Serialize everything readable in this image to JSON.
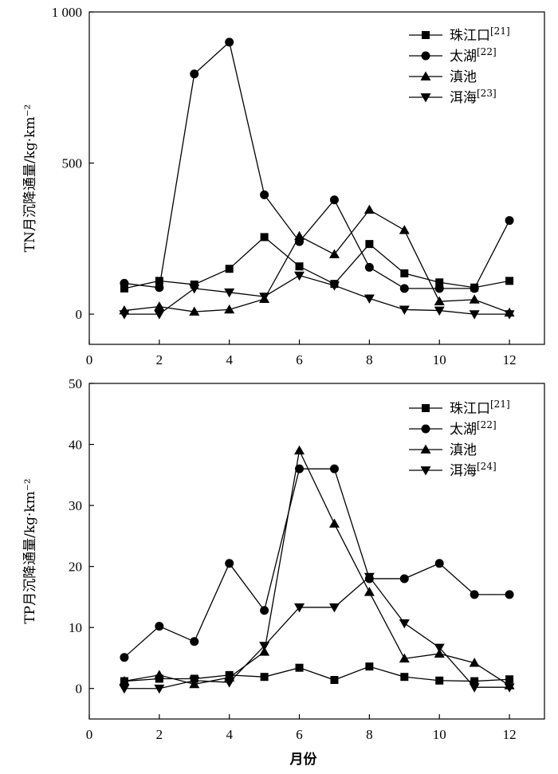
{
  "chart_data": [
    {
      "type": "line",
      "ylabel": "TN月沉降通量/kg·km⁻²",
      "xlim": [
        0,
        13
      ],
      "ylim": [
        -100,
        1000
      ],
      "x_ticks": [
        0,
        2,
        4,
        6,
        8,
        10,
        12
      ],
      "y_ticks": [
        0,
        500,
        1000
      ],
      "y_tick_labels": [
        "0",
        "500",
        "1 000"
      ],
      "legend_position": "top-right",
      "x": [
        1,
        2,
        3,
        4,
        5,
        6,
        7,
        8,
        9,
        10,
        11,
        12
      ],
      "series": [
        {
          "name": "珠江口",
          "ref": "[21]",
          "marker": "square",
          "values": [
            85,
            110,
            98,
            150,
            255,
            158,
            100,
            232,
            135,
            105,
            88,
            110
          ]
        },
        {
          "name": "太湖",
          "ref": "[22]",
          "marker": "circle",
          "values": [
            102,
            88,
            795,
            900,
            395,
            240,
            378,
            155,
            85,
            85,
            85,
            310
          ]
        },
        {
          "name": "滇池",
          "ref": "",
          "marker": "triangle-up",
          "values": [
            12,
            25,
            8,
            15,
            50,
            258,
            198,
            345,
            278,
            42,
            48,
            5
          ]
        },
        {
          "name": "洱海",
          "ref": "[23]",
          "marker": "triangle-down",
          "values": [
            0,
            0,
            85,
            72,
            58,
            128,
            95,
            52,
            15,
            12,
            0,
            0
          ]
        }
      ]
    },
    {
      "type": "line",
      "ylabel": "TP月沉降通量/kg·km⁻²",
      "xlabel": "月份",
      "xlim": [
        0,
        13
      ],
      "ylim": [
        -5,
        50
      ],
      "x_ticks": [
        0,
        2,
        4,
        6,
        8,
        10,
        12
      ],
      "y_ticks": [
        0,
        10,
        20,
        30,
        40,
        50
      ],
      "y_tick_labels": [
        "0",
        "10",
        "20",
        "30",
        "40",
        "50"
      ],
      "legend_position": "top-right",
      "x": [
        1,
        2,
        3,
        4,
        5,
        6,
        7,
        8,
        9,
        10,
        11,
        12
      ],
      "series": [
        {
          "name": "珠江口",
          "ref": "[21]",
          "marker": "square",
          "values": [
            1.2,
            1.6,
            1.6,
            2.2,
            1.9,
            3.4,
            1.4,
            3.6,
            1.9,
            1.3,
            1.2,
            1.5
          ]
        },
        {
          "name": "太湖",
          "ref": "[22]",
          "marker": "circle",
          "values": [
            5.1,
            10.2,
            7.7,
            20.5,
            12.8,
            36,
            36,
            18,
            18,
            20.5,
            15.4,
            15.4
          ]
        },
        {
          "name": "滇池",
          "ref": "",
          "marker": "triangle-up",
          "values": [
            1.2,
            2.2,
            0.7,
            1.8,
            6,
            39,
            27,
            15.8,
            4.9,
            5.7,
            4.2,
            0.5
          ]
        },
        {
          "name": "洱海",
          "ref": "[24]",
          "marker": "triangle-down",
          "values": [
            0,
            0,
            1.3,
            1,
            7,
            13.3,
            13.3,
            18.3,
            10.7,
            6.7,
            0.2,
            0.2
          ]
        }
      ]
    }
  ]
}
